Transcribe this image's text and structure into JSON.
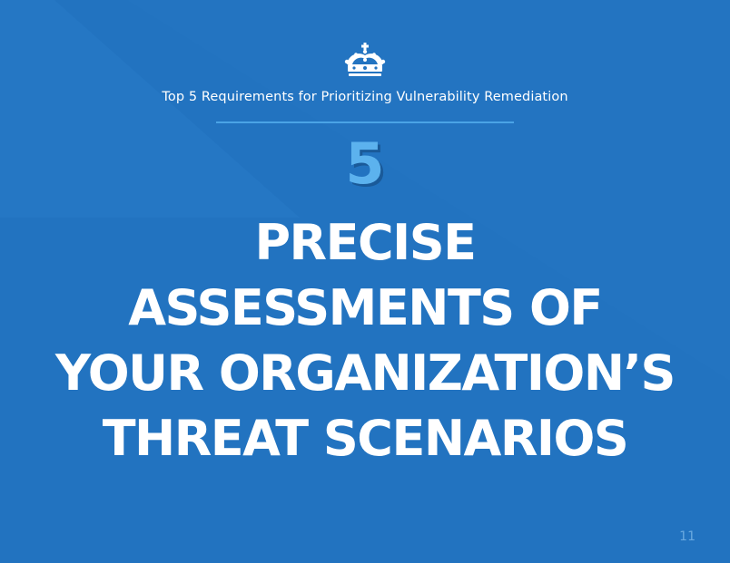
{
  "slide": {
    "subtitle": "Top 5 Requirements for Prioritizing Vulnerability Remediation",
    "number": "5",
    "headline_lines": [
      "PRECISE",
      "ASSESSMENTS OF",
      "YOUR ORGANIZATION’S",
      "THREAT SCENARIOS"
    ],
    "page_number": "11"
  },
  "colors": {
    "background": "#2374c1",
    "accent_light": "#5cb2ee",
    "rule": "#4aa3e6",
    "text": "#ffffff"
  },
  "icons": {
    "logo": "crown-icon"
  }
}
